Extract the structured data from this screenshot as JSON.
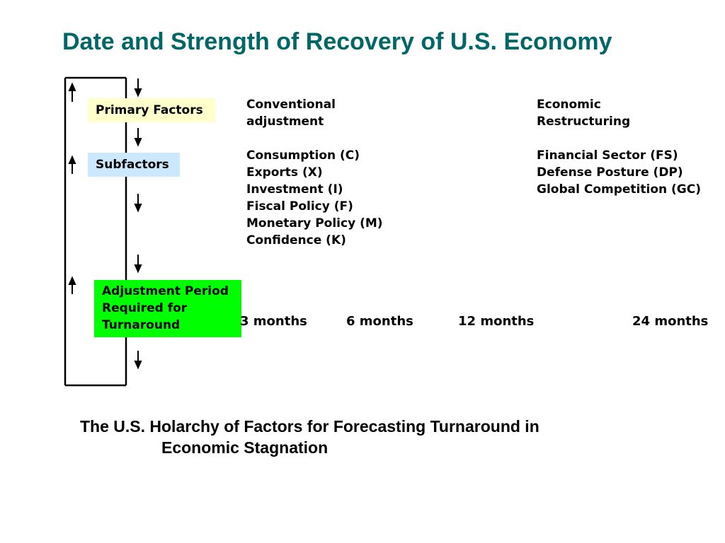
{
  "title": "Date and Strength of Recovery of U.S. Economy",
  "boxes": {
    "primary": "Primary Factors",
    "sub": "Subfactors",
    "adjustment": [
      "Adjustment Period",
      "Required for",
      "Turnaround"
    ]
  },
  "primary_factors": {
    "conventional": [
      "Conventional",
      "adjustment"
    ],
    "economic": [
      "Economic",
      "Restructuring"
    ]
  },
  "subfactors": {
    "conventional": [
      "Consumption (C)",
      "Exports (X)",
      "Investment (I)",
      "Fiscal Policy (F)",
      "Monetary Policy (M)",
      "Confidence (K)"
    ],
    "economic": [
      "Financial Sector (FS)",
      "Defense Posture (DP)",
      "Global Competition (GC)"
    ]
  },
  "periods": [
    "3 months",
    "6 months",
    "12 months",
    "24 months"
  ],
  "caption": {
    "line1": "The U.S. Holarchy of Factors for Forecasting Turnaround in",
    "line2": "Economic Stagnation"
  },
  "colors": {
    "title": "#006666",
    "primary_box": "#ffffcc",
    "sub_box": "#cce8ff",
    "adjustment_box": "#00ff00"
  }
}
